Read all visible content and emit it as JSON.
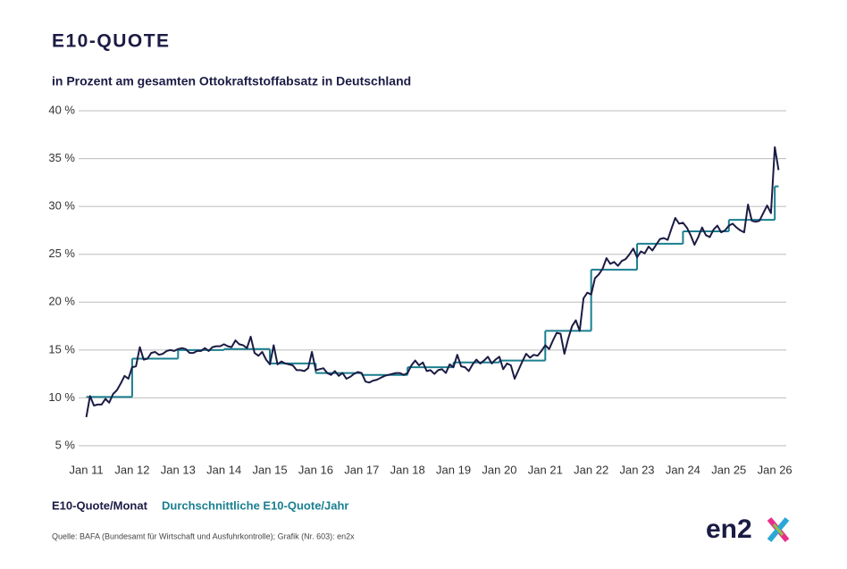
{
  "chart_data": {
    "type": "line",
    "title": "E10-QUOTE",
    "subtitle": "in Prozent am gesamten Ottokraftstoffabsatz in Deutschland",
    "source": "Quelle: BAFA (Bundesamt für Wirtschaft und Ausfuhrkontrolle); Grafik (Nr. 603): en2x",
    "logo": "en2",
    "xlim": [
      -2,
      183
    ],
    "xticks": [
      {
        "value": 0,
        "label": "Jan 11"
      },
      {
        "value": 12,
        "label": "Jan 12"
      },
      {
        "value": 24,
        "label": "Jan 13"
      },
      {
        "value": 36,
        "label": "Jan 14"
      },
      {
        "value": 48,
        "label": "Jan 15"
      },
      {
        "value": 60,
        "label": "Jan 16"
      },
      {
        "value": 72,
        "label": "Jan 17"
      },
      {
        "value": 84,
        "label": "Jan 18"
      },
      {
        "value": 96,
        "label": "Jan 19"
      },
      {
        "value": 108,
        "label": "Jan 20"
      },
      {
        "value": 120,
        "label": "Jan 21"
      },
      {
        "value": 132,
        "label": "Jan 22"
      },
      {
        "value": 144,
        "label": "Jan 23"
      },
      {
        "value": 156,
        "label": "Jan 24"
      },
      {
        "value": 168,
        "label": "Jan 25"
      },
      {
        "value": 180,
        "label": "Jan 26"
      }
    ],
    "ylim": [
      5,
      40
    ],
    "yticks": [
      {
        "value": 5,
        "label": "5 %"
      },
      {
        "value": 10,
        "label": "10 %"
      },
      {
        "value": 15,
        "label": "15 %"
      },
      {
        "value": 20,
        "label": "20 %"
      },
      {
        "value": 25,
        "label": "25 %"
      },
      {
        "value": 30,
        "label": "30 %"
      },
      {
        "value": 35,
        "label": "35 %"
      },
      {
        "value": 40,
        "label": "40 %"
      }
    ],
    "grid": true,
    "series": [
      {
        "name": "E10-Quote/Monat",
        "color": "#1b1b45",
        "x": [
          0,
          1,
          2,
          3,
          4,
          5,
          6,
          7,
          8,
          9,
          10,
          11,
          12,
          13,
          14,
          15,
          16,
          17,
          18,
          19,
          20,
          21,
          22,
          23,
          24,
          25,
          26,
          27,
          28,
          29,
          30,
          31,
          32,
          33,
          34,
          35,
          36,
          37,
          38,
          39,
          40,
          41,
          42,
          43,
          44,
          45,
          46,
          47,
          48,
          49,
          50,
          51,
          52,
          53,
          54,
          55,
          56,
          57,
          58,
          59,
          60,
          61,
          62,
          63,
          64,
          65,
          66,
          67,
          68,
          69,
          70,
          71,
          72,
          73,
          74,
          75,
          76,
          77,
          78,
          79,
          80,
          81,
          82,
          83,
          84,
          85,
          86,
          87,
          88,
          89,
          90,
          91,
          92,
          93,
          94,
          95,
          96,
          97,
          98,
          99,
          100,
          101,
          102,
          103,
          104,
          105,
          106,
          107,
          108,
          109,
          110,
          111,
          112,
          113,
          114,
          115,
          116,
          117,
          118,
          119,
          120,
          121,
          122,
          123,
          124,
          125,
          126,
          127,
          128,
          129,
          130,
          131,
          132,
          133,
          134,
          135,
          136,
          137,
          138,
          139,
          140,
          141,
          142,
          143,
          144,
          145,
          146,
          147,
          148,
          149,
          150,
          151,
          152,
          153,
          154,
          155,
          156,
          157,
          158,
          159,
          160,
          161,
          162,
          163,
          164,
          165,
          166,
          167,
          168,
          169,
          170,
          171,
          172,
          173,
          174,
          175,
          176,
          177,
          178,
          179,
          180,
          181
        ],
        "values": [
          8.0,
          10.2,
          9.2,
          9.3,
          9.3,
          9.9,
          9.5,
          10.4,
          10.8,
          11.5,
          12.3,
          12.0,
          13.2,
          13.3,
          15.3,
          14.0,
          14.1,
          14.7,
          14.8,
          14.5,
          14.6,
          14.9,
          15.0,
          14.9,
          15.1,
          15.2,
          15.1,
          14.7,
          14.7,
          14.9,
          14.9,
          15.2,
          14.9,
          15.3,
          15.4,
          15.4,
          15.6,
          15.4,
          15.3,
          16.0,
          15.6,
          15.5,
          15.2,
          16.4,
          14.7,
          14.4,
          14.8,
          14.0,
          13.5,
          15.5,
          13.5,
          13.8,
          13.6,
          13.5,
          13.4,
          12.9,
          12.9,
          12.8,
          13.1,
          14.8,
          12.9,
          13.0,
          13.1,
          12.6,
          12.4,
          12.8,
          12.3,
          12.6,
          12.0,
          12.2,
          12.5,
          12.7,
          12.6,
          11.7,
          11.6,
          11.8,
          11.9,
          12.1,
          12.3,
          12.4,
          12.5,
          12.6,
          12.6,
          12.4,
          12.6,
          13.4,
          13.9,
          13.4,
          13.7,
          12.8,
          12.9,
          12.5,
          12.9,
          13.0,
          12.6,
          13.5,
          13.2,
          14.5,
          13.3,
          13.2,
          12.8,
          13.5,
          14.0,
          13.6,
          13.9,
          14.3,
          13.6,
          14.0,
          14.3,
          13.0,
          13.6,
          13.4,
          12.0,
          12.9,
          13.8,
          14.6,
          14.2,
          14.5,
          14.4,
          14.9,
          15.5,
          15.1,
          16.0,
          16.8,
          16.7,
          14.6,
          16.2,
          17.5,
          18.1,
          17.0,
          20.4,
          21.0,
          20.8,
          22.5,
          22.9,
          23.5,
          24.6,
          24.0,
          24.2,
          23.8,
          24.3,
          24.5,
          25.0,
          25.6,
          24.7,
          25.3,
          25.1,
          25.8,
          25.4,
          26.0,
          26.6,
          26.7,
          26.5,
          27.7,
          28.8,
          28.2,
          28.3,
          27.8,
          27.0,
          26.0,
          26.8,
          27.8,
          27.0,
          26.8,
          27.6,
          28.0,
          27.3,
          27.5,
          28.0,
          28.2,
          27.8,
          27.5,
          27.3,
          30.2,
          28.5,
          28.4,
          28.5,
          29.3,
          30.1,
          29.3,
          36.2,
          33.8
        ]
      },
      {
        "name": "Durchschnittliche E10-Quote/Jahr",
        "color": "#1a7f8f",
        "x": [
          0,
          12,
          24,
          36,
          48,
          60,
          72,
          84,
          96,
          108,
          120,
          132,
          144,
          156,
          168,
          180
        ],
        "values": [
          10.1,
          14.1,
          15.0,
          15.1,
          13.6,
          12.6,
          12.4,
          13.2,
          13.7,
          13.9,
          17.0,
          23.4,
          26.1,
          27.4,
          28.6,
          32.1
        ]
      }
    ]
  }
}
